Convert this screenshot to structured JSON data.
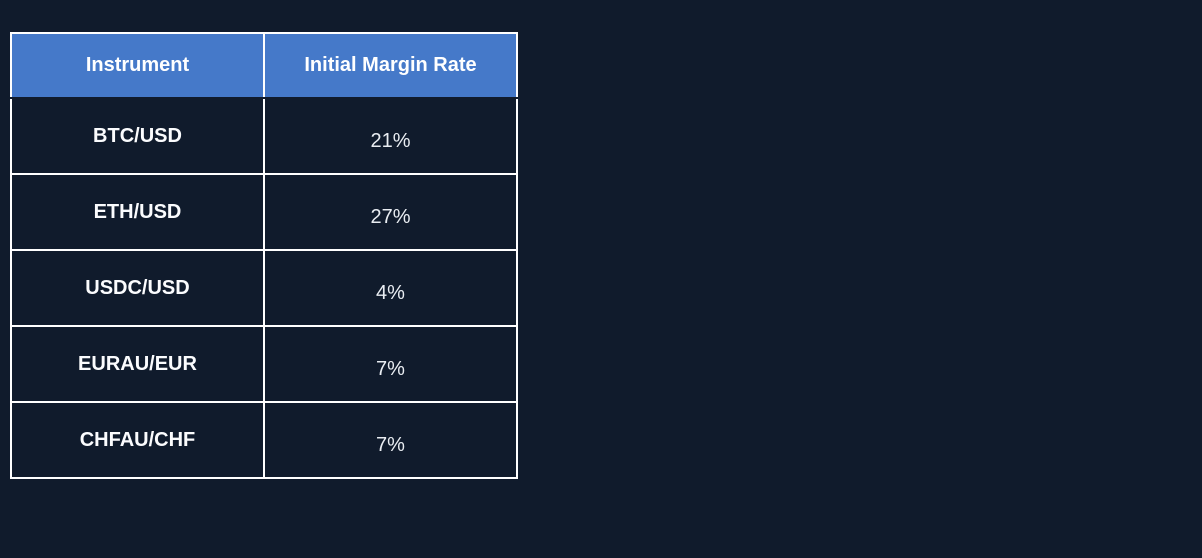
{
  "chart_data": {
    "type": "table",
    "columns": [
      "Instrument",
      "Initial Margin Rate"
    ],
    "rows": [
      {
        "instrument": "BTC/USD",
        "initial_margin_rate": "21%"
      },
      {
        "instrument": "ETH/USD",
        "initial_margin_rate": "27%"
      },
      {
        "instrument": "USDC/USD",
        "initial_margin_rate": "4%"
      },
      {
        "instrument": "EURAU/EUR",
        "initial_margin_rate": "7%"
      },
      {
        "instrument": "CHFAU/CHF",
        "initial_margin_rate": "7%"
      }
    ]
  },
  "colors": {
    "page_background": "#101b2c",
    "header_background": "#4579c9",
    "border": "#ffffff",
    "header_text": "#ffffff",
    "instrument_text": "#fbfcfe",
    "rate_text": "#e9edf2"
  }
}
